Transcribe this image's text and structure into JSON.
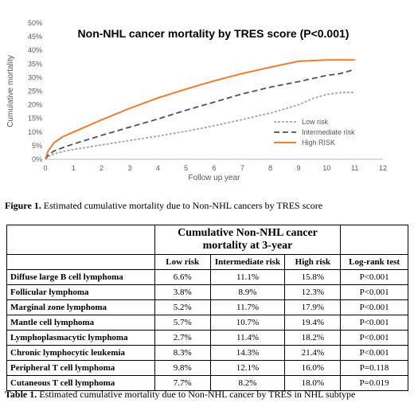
{
  "figure": {
    "caption_label": "Figure 1.",
    "caption_text": " Estimated cumulative mortality due to Non-NHL cancers by TRES score"
  },
  "chart_data": {
    "type": "line",
    "title": "Non-NHL cancer mortality by TRES score (P<0.001)",
    "xlabel": "Follow up year",
    "ylabel": "Cumulative mortality",
    "xlim": [
      0,
      12
    ],
    "ylim": [
      0,
      50
    ],
    "x_ticks": [
      "0",
      "1",
      "2",
      "3",
      "4",
      "5",
      "6",
      "7",
      "8",
      "9",
      "10",
      "11",
      "12"
    ],
    "y_ticks": [
      "0%",
      "5%",
      "10%",
      "15%",
      "20%",
      "25%",
      "30%",
      "35%",
      "40%",
      "45%",
      "50%"
    ],
    "legend_position": "right",
    "grid": false,
    "series": [
      {
        "name": "Low risk",
        "color": "#a6a6a6",
        "style": "dotted",
        "x": [
          0,
          0.1,
          0.3,
          0.6,
          1,
          2,
          3,
          4,
          5,
          6,
          7,
          8,
          9,
          9.5,
          10,
          10.5,
          11
        ],
        "y": [
          0,
          1.0,
          2.0,
          2.8,
          3.6,
          5.3,
          6.9,
          8.5,
          10.3,
          12.3,
          14.6,
          17.0,
          20.0,
          22.3,
          23.8,
          24.5,
          24.5
        ]
      },
      {
        "name": "Intermediate risk",
        "color": "#44546a",
        "style": "dashed",
        "x": [
          0,
          0.1,
          0.3,
          0.6,
          1,
          2,
          3,
          4,
          5,
          6,
          7,
          8,
          9,
          10,
          10.5,
          11
        ],
        "y": [
          0,
          1.5,
          3.0,
          4.2,
          5.6,
          8.8,
          11.8,
          14.8,
          18.0,
          21.0,
          24.0,
          26.5,
          28.5,
          30.8,
          31.5,
          33.0
        ]
      },
      {
        "name": "High RISK",
        "color": "#ed7d31",
        "style": "solid",
        "x": [
          0,
          0.1,
          0.3,
          0.6,
          1,
          2,
          3,
          4,
          5,
          6,
          7,
          8,
          9,
          10,
          11
        ],
        "y": [
          0,
          3.0,
          6.0,
          8.2,
          10.0,
          14.5,
          18.7,
          22.5,
          25.8,
          28.8,
          31.5,
          33.8,
          36.0,
          36.5,
          36.5
        ]
      }
    ]
  },
  "table": {
    "group_header": "Cumulative Non-NHL cancer mortality at 3-year",
    "col_headers": [
      "Low risk",
      "Intermediate risk",
      "High risk"
    ],
    "pvalue_header": "Log-rank test",
    "rows": [
      {
        "label": "Diffuse large B cell lymphoma",
        "low": "6.6%",
        "intermediate": "11.1%",
        "high": "15.8%",
        "p": "P<0.001"
      },
      {
        "label": "Follicular lymphoma",
        "low": "3.8%",
        "intermediate": "8.9%",
        "high": "12.3%",
        "p": "P<0.001"
      },
      {
        "label": "Marginal zone lymphoma",
        "low": "5.2%",
        "intermediate": "11.7%",
        "high": "17.9%",
        "p": "P<0.001"
      },
      {
        "label": "Mantle cell lymphoma",
        "low": "5.7%",
        "intermediate": "10.7%",
        "high": "19.4%",
        "p": "P<0.001"
      },
      {
        "label": "Lymphoplasmacytic lymphoma",
        "low": "2.7%",
        "intermediate": "11.4%",
        "high": "18.2%",
        "p": "P<0.001"
      },
      {
        "label": "Chronic lymphocytic leukemia",
        "low": "8.3%",
        "intermediate": "14.3%",
        "high": "21.4%",
        "p": "P<0.001"
      },
      {
        "label": "Peripheral T cell lymphoma",
        "low": "9.8%",
        "intermediate": "12.1%",
        "high": "16.0%",
        "p": "P=0.118"
      },
      {
        "label": "Cutaneous T cell lymphoma",
        "low": "7.7%",
        "intermediate": "8.2%",
        "high": "18.0%",
        "p": "P=0.019"
      }
    ],
    "caption_label": "Table 1.",
    "caption_text": " Estimated cumulative mortality due to Non-NHL cancer by TRES in NHL subtype"
  }
}
